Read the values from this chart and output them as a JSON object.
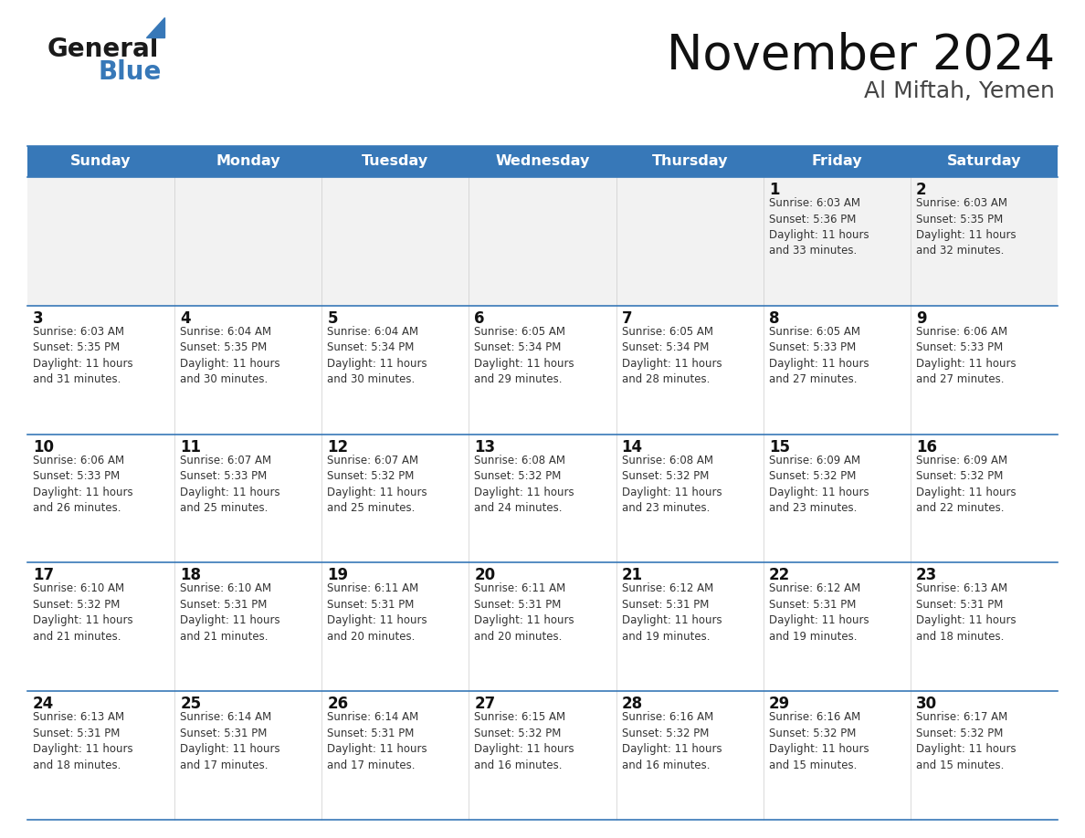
{
  "title": "November 2024",
  "subtitle": "Al Miftah, Yemen",
  "header_color": "#3778b8",
  "header_text_color": "#ffffff",
  "row0_bg": "#f2f2f2",
  "row_bg": "#ffffff",
  "border_color": "#3778b8",
  "title_color": "#111111",
  "subtitle_color": "#444444",
  "day_number_color": "#111111",
  "cell_text_color": "#333333",
  "days_of_week": [
    "Sunday",
    "Monday",
    "Tuesday",
    "Wednesday",
    "Thursday",
    "Friday",
    "Saturday"
  ],
  "weeks": [
    [
      {
        "day": "",
        "info": ""
      },
      {
        "day": "",
        "info": ""
      },
      {
        "day": "",
        "info": ""
      },
      {
        "day": "",
        "info": ""
      },
      {
        "day": "",
        "info": ""
      },
      {
        "day": "1",
        "info": "Sunrise: 6:03 AM\nSunset: 5:36 PM\nDaylight: 11 hours\nand 33 minutes."
      },
      {
        "day": "2",
        "info": "Sunrise: 6:03 AM\nSunset: 5:35 PM\nDaylight: 11 hours\nand 32 minutes."
      }
    ],
    [
      {
        "day": "3",
        "info": "Sunrise: 6:03 AM\nSunset: 5:35 PM\nDaylight: 11 hours\nand 31 minutes."
      },
      {
        "day": "4",
        "info": "Sunrise: 6:04 AM\nSunset: 5:35 PM\nDaylight: 11 hours\nand 30 minutes."
      },
      {
        "day": "5",
        "info": "Sunrise: 6:04 AM\nSunset: 5:34 PM\nDaylight: 11 hours\nand 30 minutes."
      },
      {
        "day": "6",
        "info": "Sunrise: 6:05 AM\nSunset: 5:34 PM\nDaylight: 11 hours\nand 29 minutes."
      },
      {
        "day": "7",
        "info": "Sunrise: 6:05 AM\nSunset: 5:34 PM\nDaylight: 11 hours\nand 28 minutes."
      },
      {
        "day": "8",
        "info": "Sunrise: 6:05 AM\nSunset: 5:33 PM\nDaylight: 11 hours\nand 27 minutes."
      },
      {
        "day": "9",
        "info": "Sunrise: 6:06 AM\nSunset: 5:33 PM\nDaylight: 11 hours\nand 27 minutes."
      }
    ],
    [
      {
        "day": "10",
        "info": "Sunrise: 6:06 AM\nSunset: 5:33 PM\nDaylight: 11 hours\nand 26 minutes."
      },
      {
        "day": "11",
        "info": "Sunrise: 6:07 AM\nSunset: 5:33 PM\nDaylight: 11 hours\nand 25 minutes."
      },
      {
        "day": "12",
        "info": "Sunrise: 6:07 AM\nSunset: 5:32 PM\nDaylight: 11 hours\nand 25 minutes."
      },
      {
        "day": "13",
        "info": "Sunrise: 6:08 AM\nSunset: 5:32 PM\nDaylight: 11 hours\nand 24 minutes."
      },
      {
        "day": "14",
        "info": "Sunrise: 6:08 AM\nSunset: 5:32 PM\nDaylight: 11 hours\nand 23 minutes."
      },
      {
        "day": "15",
        "info": "Sunrise: 6:09 AM\nSunset: 5:32 PM\nDaylight: 11 hours\nand 23 minutes."
      },
      {
        "day": "16",
        "info": "Sunrise: 6:09 AM\nSunset: 5:32 PM\nDaylight: 11 hours\nand 22 minutes."
      }
    ],
    [
      {
        "day": "17",
        "info": "Sunrise: 6:10 AM\nSunset: 5:32 PM\nDaylight: 11 hours\nand 21 minutes."
      },
      {
        "day": "18",
        "info": "Sunrise: 6:10 AM\nSunset: 5:31 PM\nDaylight: 11 hours\nand 21 minutes."
      },
      {
        "day": "19",
        "info": "Sunrise: 6:11 AM\nSunset: 5:31 PM\nDaylight: 11 hours\nand 20 minutes."
      },
      {
        "day": "20",
        "info": "Sunrise: 6:11 AM\nSunset: 5:31 PM\nDaylight: 11 hours\nand 20 minutes."
      },
      {
        "day": "21",
        "info": "Sunrise: 6:12 AM\nSunset: 5:31 PM\nDaylight: 11 hours\nand 19 minutes."
      },
      {
        "day": "22",
        "info": "Sunrise: 6:12 AM\nSunset: 5:31 PM\nDaylight: 11 hours\nand 19 minutes."
      },
      {
        "day": "23",
        "info": "Sunrise: 6:13 AM\nSunset: 5:31 PM\nDaylight: 11 hours\nand 18 minutes."
      }
    ],
    [
      {
        "day": "24",
        "info": "Sunrise: 6:13 AM\nSunset: 5:31 PM\nDaylight: 11 hours\nand 18 minutes."
      },
      {
        "day": "25",
        "info": "Sunrise: 6:14 AM\nSunset: 5:31 PM\nDaylight: 11 hours\nand 17 minutes."
      },
      {
        "day": "26",
        "info": "Sunrise: 6:14 AM\nSunset: 5:31 PM\nDaylight: 11 hours\nand 17 minutes."
      },
      {
        "day": "27",
        "info": "Sunrise: 6:15 AM\nSunset: 5:32 PM\nDaylight: 11 hours\nand 16 minutes."
      },
      {
        "day": "28",
        "info": "Sunrise: 6:16 AM\nSunset: 5:32 PM\nDaylight: 11 hours\nand 16 minutes."
      },
      {
        "day": "29",
        "info": "Sunrise: 6:16 AM\nSunset: 5:32 PM\nDaylight: 11 hours\nand 15 minutes."
      },
      {
        "day": "30",
        "info": "Sunrise: 6:17 AM\nSunset: 5:32 PM\nDaylight: 11 hours\nand 15 minutes."
      }
    ]
  ]
}
